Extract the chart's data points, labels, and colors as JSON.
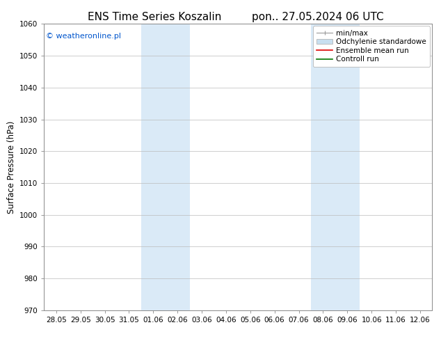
{
  "title_left": "ENS Time Series Koszalin",
  "title_right": "pon.. 27.05.2024 06 UTC",
  "ylabel": "Surface Pressure (hPa)",
  "ylim": [
    970,
    1060
  ],
  "yticks": [
    970,
    980,
    990,
    1000,
    1010,
    1020,
    1030,
    1040,
    1050,
    1060
  ],
  "xtick_labels": [
    "28.05",
    "29.05",
    "30.05",
    "31.05",
    "01.06",
    "02.06",
    "03.06",
    "04.06",
    "05.06",
    "06.06",
    "07.06",
    "08.06",
    "09.06",
    "10.06",
    "11.06",
    "12.06"
  ],
  "watermark": "© weatheronline.pl",
  "watermark_color": "#0055cc",
  "bg_color": "#ffffff",
  "plot_bg_color": "#ffffff",
  "shaded_bands": [
    {
      "xstart": 4,
      "xend": 6,
      "color": "#daeaf7"
    },
    {
      "xstart": 11,
      "xend": 13,
      "color": "#daeaf7"
    }
  ],
  "legend_items": [
    {
      "label": "min/max",
      "color": "#aaaaaa",
      "style": "minmax"
    },
    {
      "label": "Odchylenie standardowe",
      "color": "#c8dff0",
      "style": "bar"
    },
    {
      "label": "Ensemble mean run",
      "color": "#dd0000",
      "style": "line"
    },
    {
      "label": "Controll run",
      "color": "#007700",
      "style": "line"
    }
  ],
  "title_fontsize": 11,
  "tick_fontsize": 7.5,
  "ylabel_fontsize": 8.5,
  "legend_fontsize": 7.5,
  "grid_color": "#bbbbbb",
  "spine_color": "#888888"
}
